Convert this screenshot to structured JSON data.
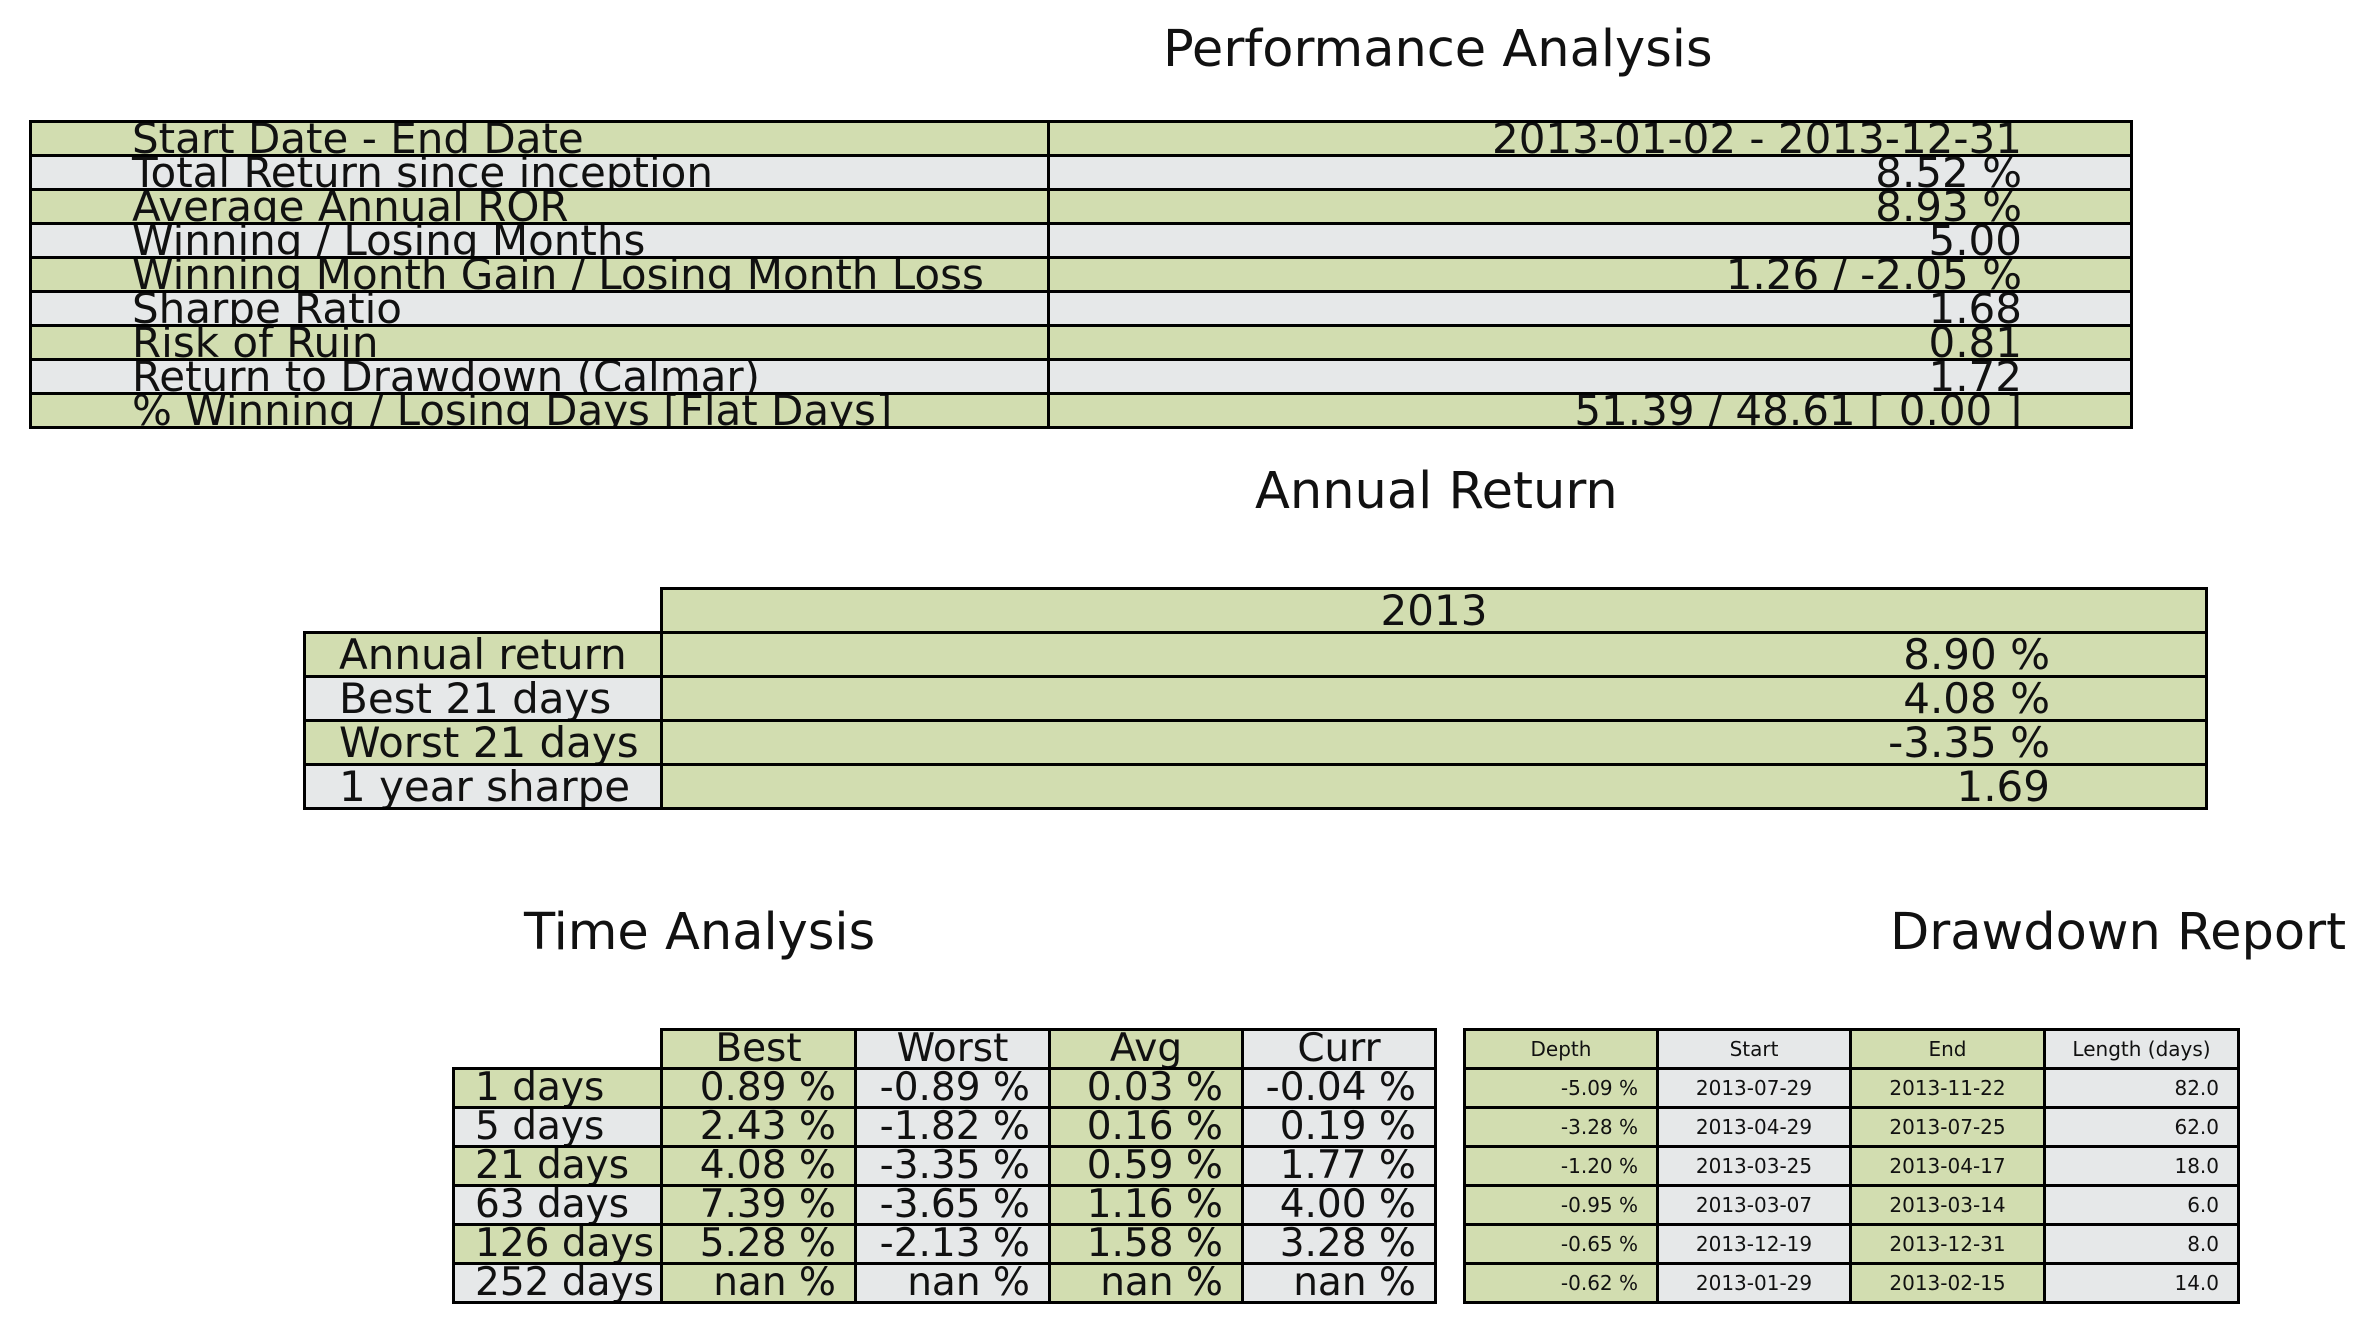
{
  "performance": {
    "title": "Performance Analysis",
    "rows": [
      {
        "label": "Start Date - End Date",
        "value": "2013-01-02 - 2013-12-31"
      },
      {
        "label": "Total Return since inception",
        "value": "8.52 %"
      },
      {
        "label": "Average Annual ROR",
        "value": "8.93 %"
      },
      {
        "label": "Winning / Losing Months",
        "value": "5.00"
      },
      {
        "label": "Winning Month Gain / Losing Month Loss",
        "value": "1.26 / -2.05 %"
      },
      {
        "label": "Sharpe Ratio",
        "value": "1.68"
      },
      {
        "label": "Risk of Ruin",
        "value": "0.81"
      },
      {
        "label": "Return to Drawdown (Calmar)",
        "value": "1.72"
      },
      {
        "label": "% Winning / Losing Days [Flat Days]",
        "value": "51.39 / 48.61 [ 0.00 ]"
      }
    ]
  },
  "annual": {
    "title": "Annual Return",
    "year": "2013",
    "rows": [
      {
        "label": "Annual return",
        "value": "8.90 %"
      },
      {
        "label": "Best 21 days",
        "value": "4.08 %"
      },
      {
        "label": "Worst 21 days",
        "value": "-3.35 %"
      },
      {
        "label": "1 year sharpe",
        "value": "1.69"
      }
    ]
  },
  "time": {
    "title": "Time Analysis",
    "headers": [
      "Best",
      "Worst",
      "Avg",
      "Curr"
    ],
    "rows": [
      {
        "label": "1 days",
        "values": [
          "0.89 %",
          "-0.89 %",
          "0.03 %",
          "-0.04 %"
        ]
      },
      {
        "label": "5 days",
        "values": [
          "2.43 %",
          "-1.82 %",
          "0.16 %",
          "0.19 %"
        ]
      },
      {
        "label": "21 days",
        "values": [
          "4.08 %",
          "-3.35 %",
          "0.59 %",
          "1.77 %"
        ]
      },
      {
        "label": "63 days",
        "values": [
          "7.39 %",
          "-3.65 %",
          "1.16 %",
          "4.00 %"
        ]
      },
      {
        "label": "126 days",
        "values": [
          "5.28 %",
          "-2.13 %",
          "1.58 %",
          "3.28 %"
        ]
      },
      {
        "label": "252 days",
        "values": [
          "nan %",
          "nan %",
          "nan %",
          "nan %"
        ]
      }
    ]
  },
  "drawdown": {
    "title": "Drawdown Report",
    "headers": [
      "Depth",
      "Start",
      "End",
      "Length (days)"
    ],
    "rows": [
      [
        "-5.09 %",
        "2013-07-29",
        "2013-11-22",
        "82.0"
      ],
      [
        "-3.28 %",
        "2013-04-29",
        "2013-07-25",
        "62.0"
      ],
      [
        "-1.20 %",
        "2013-03-25",
        "2013-04-17",
        "18.0"
      ],
      [
        "-0.95 %",
        "2013-03-07",
        "2013-03-14",
        "6.0"
      ],
      [
        "-0.65 %",
        "2013-12-19",
        "2013-12-31",
        "8.0"
      ],
      [
        "-0.62 %",
        "2013-01-29",
        "2013-02-15",
        "14.0"
      ]
    ]
  },
  "colors": {
    "green_cell": "#d2ddb0",
    "gray_cell": "#e6e8e9"
  }
}
